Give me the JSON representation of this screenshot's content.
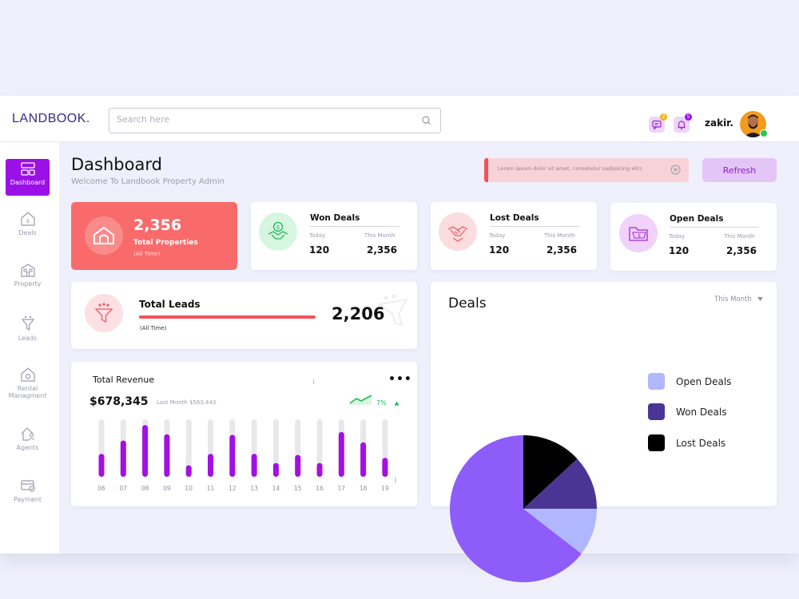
{
  "header": {
    "logo_part1": "LAND",
    "logo_part2": "BOOK.",
    "search_placeholder": "Search here",
    "messages_count": "2",
    "notifications_count": "5",
    "user_name": "zakir."
  },
  "sidebar": {
    "items": [
      {
        "label": "Dashboard"
      },
      {
        "label": "Deals"
      },
      {
        "label": "Property"
      },
      {
        "label": "Leads"
      },
      {
        "label": "Rental Managment"
      },
      {
        "label": "Agents"
      },
      {
        "label": "Payment"
      }
    ]
  },
  "page": {
    "title": "Dashboard",
    "subtitle": "Welcome To Landbook Property Admin",
    "alert_text": "Lorem ipsum dolor sit amet, consetetur sadipscing elitr,",
    "refresh_label": "Refresh"
  },
  "colors": {
    "accent": "#9b10e6",
    "coral": "#f96b6b",
    "open_deals": "#b1b7ff",
    "won_deals": "#4b3594",
    "lost_deals": "#000000",
    "pie_rest": "#8e5cf9"
  },
  "total_properties": {
    "value": "2,356",
    "label": "Total Properties",
    "sub": "(All Time)"
  },
  "won_deals": {
    "title": "Won Deals",
    "today_label": "Today",
    "month_label": "This Month",
    "today_value": "120",
    "month_value": "2,356"
  },
  "lost_deals": {
    "title": "Lost Deals",
    "today_label": "Today",
    "month_label": "This Month",
    "today_value": "120",
    "month_value": "2,356"
  },
  "open_deals": {
    "title": "Open Deals",
    "today_label": "Today",
    "month_label": "This Month",
    "today_value": "120",
    "month_value": "2,356"
  },
  "total_leads": {
    "title": "Total Leads",
    "sub": "(All Time)",
    "value": "2,206"
  },
  "revenue": {
    "title": "Total Revenue",
    "value": "$678,345",
    "last_month": "Last Month $563,443",
    "change": "7%",
    "menu": "•••"
  },
  "deals_chart": {
    "title": "Deals",
    "period": "This Month",
    "legend": [
      {
        "label": "Open Deals"
      },
      {
        "label": "Won Deals"
      },
      {
        "label": "Lost Deals"
      }
    ]
  },
  "chart_data": [
    {
      "type": "bar",
      "title": "Total Revenue",
      "categories": [
        "06",
        "07",
        "08",
        "09",
        "10",
        "11",
        "12",
        "13",
        "14",
        "15",
        "16",
        "17",
        "18",
        "19"
      ],
      "values": [
        40,
        63,
        90,
        74,
        20,
        40,
        73,
        40,
        24,
        38,
        24,
        78,
        60,
        33
      ],
      "ylim": [
        0,
        100
      ],
      "xlabel": "",
      "ylabel": ""
    },
    {
      "type": "pie",
      "title": "Deals",
      "categories": [
        "Lost Deals",
        "Won Deals",
        "Open Deals",
        "Other"
      ],
      "values": [
        13.1,
        11.9,
        10.5,
        64.5
      ]
    }
  ]
}
